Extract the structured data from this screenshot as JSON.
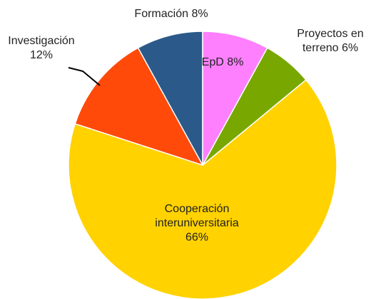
{
  "chart_data": {
    "type": "pie",
    "categories": [
      "EpD",
      "Proyectos en terreno",
      "Cooperación interuniversitaria",
      "Investigación",
      "Formación"
    ],
    "values": [
      8,
      6,
      66,
      12,
      8
    ],
    "value_labels": [
      "8%",
      "6%",
      "66%",
      "12%",
      "8%"
    ],
    "colors": [
      "#ff80ff",
      "#78a800",
      "#ffd200",
      "#ff4a0a",
      "#2b5a8a"
    ]
  }
}
